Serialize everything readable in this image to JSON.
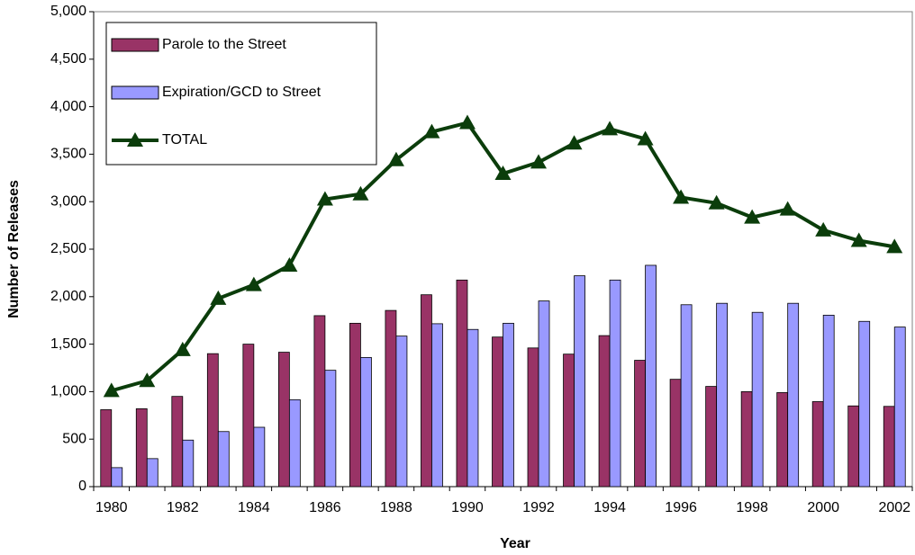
{
  "chart_data": {
    "type": "bar",
    "xlabel": "Year",
    "ylabel": "Number of Releases",
    "categories": [
      "1980",
      null,
      "1982",
      null,
      "1984",
      null,
      "1986",
      null,
      "1988",
      null,
      "1990",
      null,
      "1992",
      null,
      "1994",
      null,
      "1996",
      null,
      "1998",
      null,
      "2000",
      null,
      "2002"
    ],
    "series": [
      {
        "name": "Parole to the Street",
        "color": "#993366",
        "type": "bar",
        "values": [
          810,
          820,
          950,
          1400,
          1500,
          1415,
          1800,
          1720,
          1855,
          2020,
          2175,
          1575,
          1460,
          1395,
          1590,
          1330,
          1130,
          1055,
          1000,
          990,
          895,
          850,
          845
        ]
      },
      {
        "name": "Expiration/GCD to Street",
        "color": "#9999ff",
        "type": "bar",
        "values": [
          200,
          295,
          490,
          580,
          625,
          915,
          1225,
          1360,
          1585,
          1715,
          1655,
          1720,
          1955,
          2220,
          2175,
          2330,
          1915,
          1930,
          1835,
          1930,
          1805,
          1740,
          1680
        ]
      },
      {
        "name": "TOTAL",
        "color": "#0b3d0b",
        "type": "line",
        "values": [
          1010,
          1115,
          1440,
          1980,
          2125,
          2330,
          3025,
          3080,
          3440,
          3735,
          3830,
          3295,
          3415,
          3615,
          3765,
          3660,
          3045,
          2985,
          2835,
          2920,
          2700,
          2590,
          2525
        ]
      }
    ],
    "ylim": [
      0,
      5000
    ],
    "yticks": [
      0,
      500,
      {
        "value": 1000,
        "label": "1,000"
      },
      {
        "value": 1500,
        "label": "1,500"
      },
      {
        "value": 2000,
        "label": "2,000"
      },
      {
        "value": 2500,
        "label": "2,500"
      },
      {
        "value": 3000,
        "label": "3,000"
      },
      {
        "value": 3500,
        "label": "3,500"
      },
      {
        "value": 4000,
        "label": "4,000"
      },
      {
        "value": 4500,
        "label": "4,500"
      },
      {
        "value": 5000,
        "label": "5,000"
      }
    ],
    "legend": "upper left",
    "grid": false
  }
}
